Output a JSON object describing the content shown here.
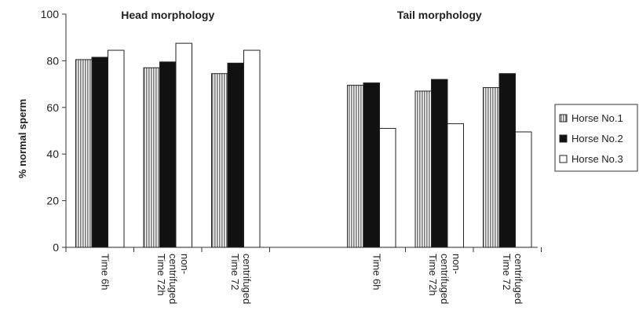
{
  "chart_data": {
    "type": "bar",
    "ylabel": "% normal sperm",
    "ylim": [
      0,
      100
    ],
    "yticks": [
      0,
      20,
      40,
      60,
      80,
      100
    ],
    "grid": false,
    "legend_position": "right",
    "panels": [
      {
        "title": "Head morphology",
        "categories": [
          [
            "Time 6h"
          ],
          [
            "non-",
            "centrifuged",
            "Time 72h"
          ],
          [
            "centrifuged",
            "Time 72"
          ]
        ],
        "series": [
          {
            "name": "Horse No.1",
            "values": [
              80.5,
              77,
              74.5
            ]
          },
          {
            "name": "Horse No.2",
            "values": [
              81.5,
              79.5,
              79
            ]
          },
          {
            "name": "Horse No.3",
            "values": [
              84.5,
              87.5,
              84.5
            ]
          }
        ]
      },
      {
        "title": "Tail morphology",
        "categories": [
          [
            "Time 6h"
          ],
          [
            "non-",
            "centrifuged",
            "Time 72h"
          ],
          [
            "centrifuged",
            "Time 72"
          ]
        ],
        "series": [
          {
            "name": "Horse No.1",
            "values": [
              69.5,
              67,
              68.5
            ]
          },
          {
            "name": "Horse No.2",
            "values": [
              70.5,
              72,
              74.5
            ]
          },
          {
            "name": "Horse No.3",
            "values": [
              51,
              53,
              49.5
            ]
          }
        ]
      }
    ],
    "legend": [
      "Horse No.1",
      "Horse No.2",
      "Horse No.3"
    ],
    "series_styles": [
      "striped-grey",
      "black",
      "white"
    ]
  }
}
